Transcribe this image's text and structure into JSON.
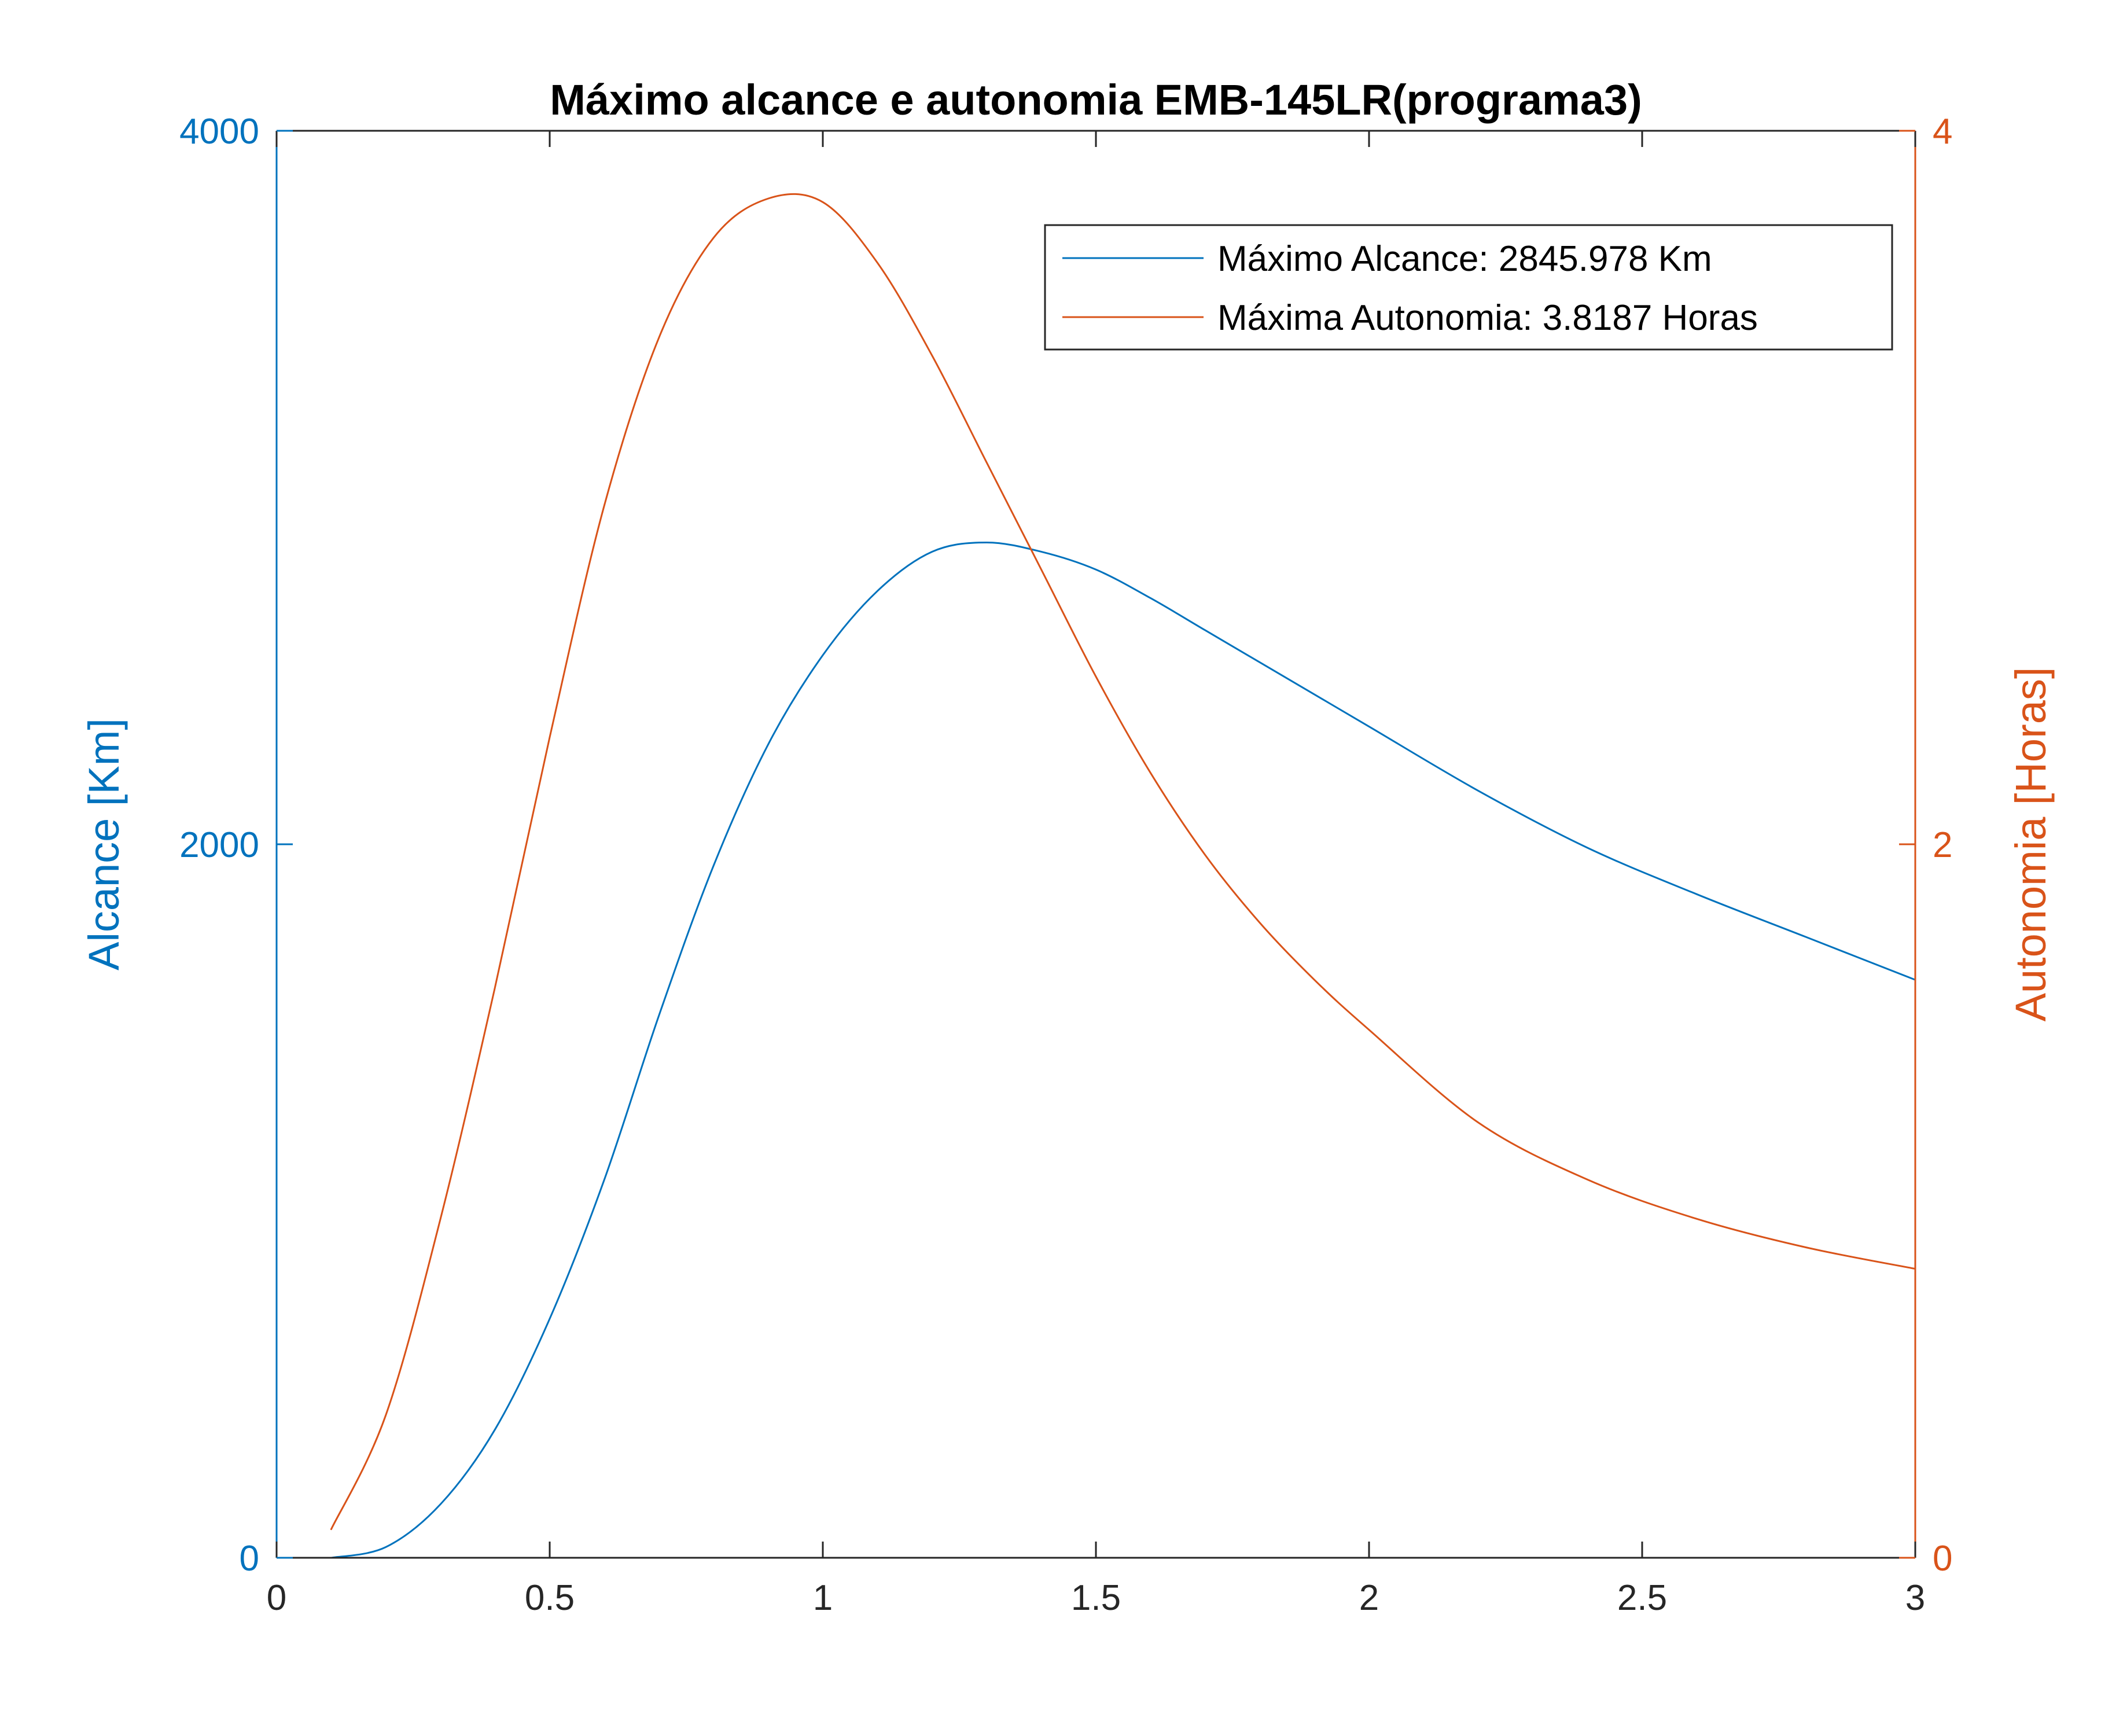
{
  "chart_data": {
    "type": "line",
    "title": "Máximo alcance e autonomia EMB-145LR(programa3)",
    "xlabel": "",
    "xlim": [
      0,
      3
    ],
    "x_ticks": [
      "0",
      "0.5",
      "1",
      "1.5",
      "2",
      "2.5",
      "3"
    ],
    "y_left": {
      "label": "Alcance [Km]",
      "lim": [
        0,
        4000
      ],
      "ticks": [
        "0",
        "2000",
        "4000"
      ],
      "color": "#0072BD"
    },
    "y_right": {
      "label": "Autonomia [Horas]",
      "lim": [
        0,
        4
      ],
      "ticks": [
        "0",
        "2",
        "4"
      ],
      "color": "#D95319"
    },
    "legend_position": "top-right",
    "grid": false,
    "series": [
      {
        "name": "Máximo Alcance: 2845.978 Km",
        "axis": "left",
        "color": "#0072BD",
        "x": [
          0.1,
          0.2,
          0.3,
          0.4,
          0.5,
          0.6,
          0.7,
          0.8,
          0.9,
          1.0,
          1.1,
          1.2,
          1.3,
          1.4,
          1.5,
          1.6,
          1.7,
          1.8,
          1.9,
          2.0,
          2.2,
          2.4,
          2.6,
          2.8,
          3.0
        ],
        "y": [
          0,
          30,
          150,
          360,
          670,
          1060,
          1520,
          1940,
          2280,
          2530,
          2710,
          2820,
          2846,
          2820,
          2770,
          2690,
          2600,
          2510,
          2420,
          2330,
          2150,
          1990,
          1860,
          1740,
          1620
        ]
      },
      {
        "name": "Máxima Autonomia: 3.8187 Horas",
        "axis": "right",
        "color": "#D95319",
        "x": [
          0.1,
          0.2,
          0.3,
          0.4,
          0.5,
          0.6,
          0.7,
          0.8,
          0.9,
          1.0,
          1.1,
          1.2,
          1.3,
          1.4,
          1.5,
          1.6,
          1.7,
          1.8,
          1.9,
          2.0,
          2.2,
          2.4,
          2.6,
          2.8,
          3.0
        ],
        "y": [
          0.08,
          0.4,
          0.95,
          1.6,
          2.3,
          2.95,
          3.42,
          3.7,
          3.81,
          3.8,
          3.63,
          3.37,
          3.07,
          2.77,
          2.47,
          2.2,
          1.97,
          1.78,
          1.62,
          1.48,
          1.22,
          1.06,
          0.95,
          0.87,
          0.81
        ]
      }
    ]
  }
}
